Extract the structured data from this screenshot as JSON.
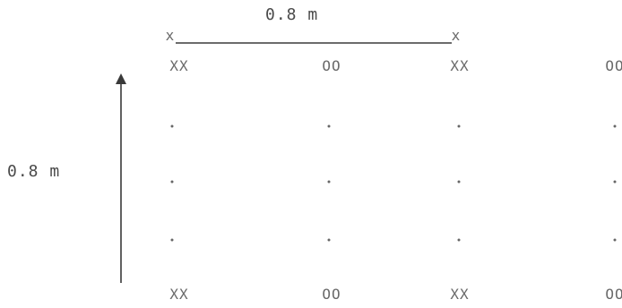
{
  "dimensions": {
    "horizontal_label": "0.8 m",
    "vertical_label": "0.8 m",
    "tick_symbol": "x"
  },
  "grid": {
    "top_row": [
      "XX",
      "OO",
      "XX",
      "OO"
    ],
    "bottom_row": [
      "XX",
      "OO",
      "XX",
      "OO"
    ],
    "intermediate_dot_rows": 3,
    "columns": 4
  },
  "colors": {
    "ink": "#555555",
    "line": "#3a3a3a"
  }
}
